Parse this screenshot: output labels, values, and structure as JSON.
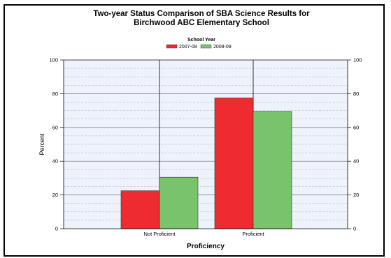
{
  "chart_data": {
    "type": "bar",
    "title_line1": "Two-year Status Comparison of SBA Science Results for",
    "title_line2": "Birchwood ABC Elementary School",
    "legend_title": "School Year",
    "categories": [
      "Not Proficient",
      "Proficient"
    ],
    "series": [
      {
        "name": "2007-08",
        "values": [
          22.5,
          77.5
        ],
        "color": "#ee2b2f"
      },
      {
        "name": "2008-09",
        "values": [
          30.5,
          69.5
        ],
        "color": "#79c46b"
      }
    ],
    "xlabel": "Proficiency",
    "ylabel": "Percent",
    "ylim": [
      0,
      100
    ],
    "yticks": [
      0,
      20,
      40,
      60,
      80,
      100
    ],
    "plot_background": "#eef2fb",
    "grid": true
  }
}
